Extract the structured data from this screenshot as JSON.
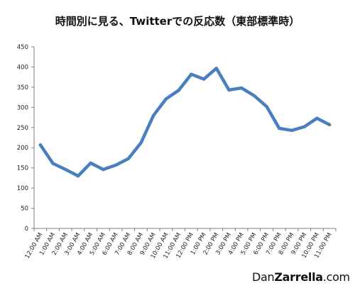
{
  "title": "時間別に見る、Twitterでの反応数（東部標準時）",
  "brand": {
    "part1": "Dan",
    "part2": "Zarrella",
    "part3": ".com"
  },
  "colors": {
    "line": "#4a7fbf",
    "axis": "#7f7f7f",
    "grid": "#d9d9d9"
  },
  "chart_data": {
    "type": "line",
    "title": "時間別に見る、Twitterでの反応数（東部標準時）",
    "xlabel": "",
    "ylabel": "",
    "ylim": [
      0,
      450
    ],
    "yticks": [
      0,
      50,
      100,
      150,
      200,
      250,
      300,
      350,
      400,
      450
    ],
    "grid": false,
    "legend": "none",
    "categories": [
      "12:00 AM",
      "1:00 AM",
      "2:00 AM",
      "3:00 AM",
      "4:00 AM",
      "5:00 AM",
      "6:00 AM",
      "7:00 AM",
      "8:00 AM",
      "9:00 AM",
      "10:00 AM",
      "11:00 AM",
      "12:00 PM",
      "1:00 PM",
      "2:00 PM",
      "3:00 PM",
      "4:00 PM",
      "5:00 PM",
      "6:00 PM",
      "7:00 PM",
      "8:00 PM",
      "9:00 PM",
      "10:00 PM",
      "11:00 PM"
    ],
    "series": [
      {
        "values": [
          207,
          161,
          146,
          130,
          162,
          146,
          157,
          173,
          212,
          280,
          321,
          342,
          382,
          370,
          397,
          343,
          348,
          329,
          302,
          248,
          243,
          252,
          273,
          257
        ]
      }
    ]
  }
}
